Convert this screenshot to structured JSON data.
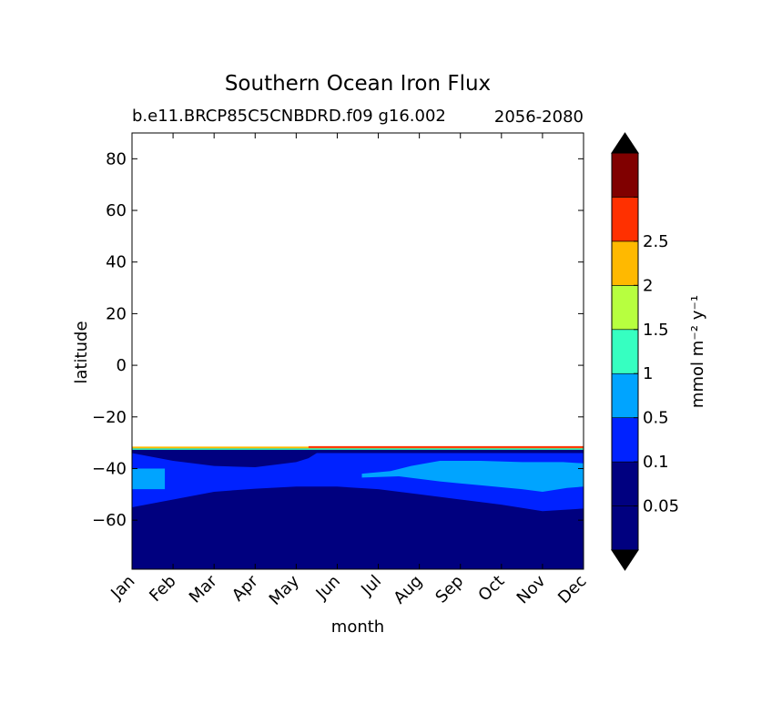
{
  "chart_data": {
    "type": "heatmap",
    "title": "Southern Ocean Iron Flux",
    "subtitle_left": "b.e11.BRCP85C5CNBDRD.f09 g16.002",
    "subtitle_right": "2056-2080",
    "xlabel": "month",
    "ylabel": "latitude",
    "categories": [
      "Jan",
      "Feb",
      "Mar",
      "Apr",
      "May",
      "Jun",
      "Jul",
      "Aug",
      "Sep",
      "Oct",
      "Nov",
      "Dec"
    ],
    "xlim": [
      0,
      11
    ],
    "ylim": [
      -79,
      90
    ],
    "yticks": [
      80,
      60,
      40,
      20,
      0,
      -20,
      -40,
      -60
    ],
    "ytick_labels": [
      "80",
      "60",
      "40",
      "20",
      "0",
      "−20",
      "−40",
      "−60"
    ],
    "data_top_latitude": -31.5,
    "regions": [
      {
        "level": "<0.05",
        "edge_low": [
          [
            0,
            -79
          ],
          [
            11,
            -79
          ]
        ],
        "edge_high": [
          [
            0,
            -31.9
          ],
          [
            11,
            -31.9
          ]
        ]
      },
      {
        "level": "0.05-0.1",
        "edge_low": [
          [
            0,
            -55
          ],
          [
            1,
            -52
          ],
          [
            2,
            -49
          ],
          [
            3,
            -47.8
          ],
          [
            4,
            -47
          ],
          [
            5,
            -47
          ],
          [
            6,
            -48
          ],
          [
            7,
            -50
          ],
          [
            8,
            -52
          ],
          [
            9,
            -54
          ],
          [
            10,
            -56.5
          ],
          [
            11,
            -55.5
          ]
        ],
        "edge_high": [
          [
            0,
            -34
          ],
          [
            1,
            -37
          ],
          [
            2,
            -39
          ],
          [
            3,
            -39.5
          ],
          [
            4,
            -37.5
          ],
          [
            4.3,
            -36
          ],
          [
            4.5,
            -34
          ],
          [
            11,
            -34
          ]
        ]
      },
      {
        "level": "0.1-0.5",
        "edge_low": [
          [
            0,
            -48
          ],
          [
            0.8,
            -48
          ],
          [
            0.8,
            -40
          ],
          [
            0,
            -40
          ]
        ],
        "edge_high": [
          [
            0,
            -40
          ]
        ]
      },
      {
        "level": "0.1-0.5",
        "edge_low": [
          [
            5.6,
            -43.5
          ],
          [
            6.5,
            -43
          ],
          [
            7.5,
            -45
          ],
          [
            8.5,
            -46.5
          ],
          [
            9.5,
            -48
          ],
          [
            10,
            -49
          ],
          [
            10.6,
            -47.5
          ],
          [
            11,
            -47
          ]
        ],
        "edge_high": [
          [
            11,
            -38
          ],
          [
            10.5,
            -37.5
          ],
          [
            9.5,
            -37.5
          ],
          [
            8.5,
            -37
          ],
          [
            7.5,
            -37
          ],
          [
            6.8,
            -39
          ],
          [
            6.3,
            -41
          ],
          [
            5.6,
            -42
          ]
        ]
      }
    ],
    "colorbar": {
      "label": "mmol m⁻² y⁻¹",
      "extend": "both",
      "levels": [
        {
          "label": "",
          "color": "#00007f"
        },
        {
          "label": "0.05",
          "color": "#000080"
        },
        {
          "label": "0.1",
          "color": "#0022ff"
        },
        {
          "label": "0.5",
          "color": "#00a4ff"
        },
        {
          "label": "1",
          "color": "#36ffc1"
        },
        {
          "label": "1.5",
          "color": "#b7ff3f"
        },
        {
          "label": "2",
          "color": "#ffb900"
        },
        {
          "label": "2.5",
          "color": "#ff3000"
        },
        {
          "label": "",
          "color": "#800000"
        }
      ],
      "under_color": "#000000",
      "over_color": "#000000"
    }
  }
}
